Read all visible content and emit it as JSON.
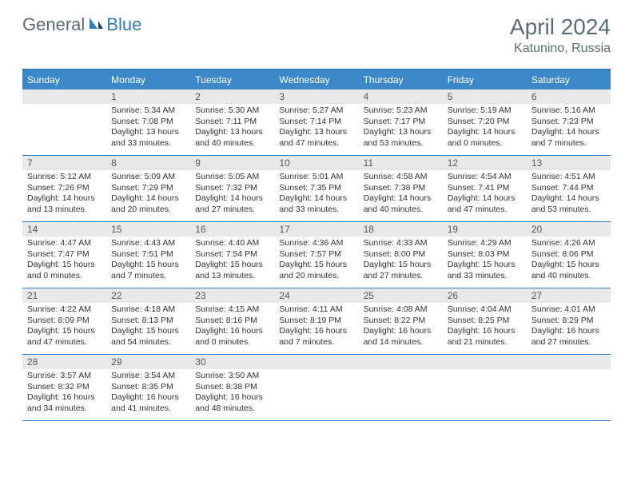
{
  "logo": {
    "part1": "General",
    "part2": "Blue"
  },
  "title": "April 2024",
  "location": "Katunino, Russia",
  "colors": {
    "header_bg": "#3b89c9",
    "border": "#2f7cc0",
    "gray_bar": "#e8e8e8",
    "text": "#333333",
    "muted": "#5a6a78"
  },
  "day_names": [
    "Sunday",
    "Monday",
    "Tuesday",
    "Wednesday",
    "Thursday",
    "Friday",
    "Saturday"
  ],
  "weeks": [
    [
      {
        "n": "",
        "l": []
      },
      {
        "n": "1",
        "l": [
          "Sunrise: 5:34 AM",
          "Sunset: 7:08 PM",
          "Daylight: 13 hours and 33 minutes."
        ]
      },
      {
        "n": "2",
        "l": [
          "Sunrise: 5:30 AM",
          "Sunset: 7:11 PM",
          "Daylight: 13 hours and 40 minutes."
        ]
      },
      {
        "n": "3",
        "l": [
          "Sunrise: 5:27 AM",
          "Sunset: 7:14 PM",
          "Daylight: 13 hours and 47 minutes."
        ]
      },
      {
        "n": "4",
        "l": [
          "Sunrise: 5:23 AM",
          "Sunset: 7:17 PM",
          "Daylight: 13 hours and 53 minutes."
        ]
      },
      {
        "n": "5",
        "l": [
          "Sunrise: 5:19 AM",
          "Sunset: 7:20 PM",
          "Daylight: 14 hours and 0 minutes."
        ]
      },
      {
        "n": "6",
        "l": [
          "Sunrise: 5:16 AM",
          "Sunset: 7:23 PM",
          "Daylight: 14 hours and 7 minutes."
        ]
      }
    ],
    [
      {
        "n": "7",
        "l": [
          "Sunrise: 5:12 AM",
          "Sunset: 7:26 PM",
          "Daylight: 14 hours and 13 minutes."
        ]
      },
      {
        "n": "8",
        "l": [
          "Sunrise: 5:09 AM",
          "Sunset: 7:29 PM",
          "Daylight: 14 hours and 20 minutes."
        ]
      },
      {
        "n": "9",
        "l": [
          "Sunrise: 5:05 AM",
          "Sunset: 7:32 PM",
          "Daylight: 14 hours and 27 minutes."
        ]
      },
      {
        "n": "10",
        "l": [
          "Sunrise: 5:01 AM",
          "Sunset: 7:35 PM",
          "Daylight: 14 hours and 33 minutes."
        ]
      },
      {
        "n": "11",
        "l": [
          "Sunrise: 4:58 AM",
          "Sunset: 7:38 PM",
          "Daylight: 14 hours and 40 minutes."
        ]
      },
      {
        "n": "12",
        "l": [
          "Sunrise: 4:54 AM",
          "Sunset: 7:41 PM",
          "Daylight: 14 hours and 47 minutes."
        ]
      },
      {
        "n": "13",
        "l": [
          "Sunrise: 4:51 AM",
          "Sunset: 7:44 PM",
          "Daylight: 14 hours and 53 minutes."
        ]
      }
    ],
    [
      {
        "n": "14",
        "l": [
          "Sunrise: 4:47 AM",
          "Sunset: 7:47 PM",
          "Daylight: 15 hours and 0 minutes."
        ]
      },
      {
        "n": "15",
        "l": [
          "Sunrise: 4:43 AM",
          "Sunset: 7:51 PM",
          "Daylight: 15 hours and 7 minutes."
        ]
      },
      {
        "n": "16",
        "l": [
          "Sunrise: 4:40 AM",
          "Sunset: 7:54 PM",
          "Daylight: 15 hours and 13 minutes."
        ]
      },
      {
        "n": "17",
        "l": [
          "Sunrise: 4:36 AM",
          "Sunset: 7:57 PM",
          "Daylight: 15 hours and 20 minutes."
        ]
      },
      {
        "n": "18",
        "l": [
          "Sunrise: 4:33 AM",
          "Sunset: 8:00 PM",
          "Daylight: 15 hours and 27 minutes."
        ]
      },
      {
        "n": "19",
        "l": [
          "Sunrise: 4:29 AM",
          "Sunset: 8:03 PM",
          "Daylight: 15 hours and 33 minutes."
        ]
      },
      {
        "n": "20",
        "l": [
          "Sunrise: 4:26 AM",
          "Sunset: 8:06 PM",
          "Daylight: 15 hours and 40 minutes."
        ]
      }
    ],
    [
      {
        "n": "21",
        "l": [
          "Sunrise: 4:22 AM",
          "Sunset: 8:09 PM",
          "Daylight: 15 hours and 47 minutes."
        ]
      },
      {
        "n": "22",
        "l": [
          "Sunrise: 4:18 AM",
          "Sunset: 8:13 PM",
          "Daylight: 15 hours and 54 minutes."
        ]
      },
      {
        "n": "23",
        "l": [
          "Sunrise: 4:15 AM",
          "Sunset: 8:16 PM",
          "Daylight: 16 hours and 0 minutes."
        ]
      },
      {
        "n": "24",
        "l": [
          "Sunrise: 4:11 AM",
          "Sunset: 8:19 PM",
          "Daylight: 16 hours and 7 minutes."
        ]
      },
      {
        "n": "25",
        "l": [
          "Sunrise: 4:08 AM",
          "Sunset: 8:22 PM",
          "Daylight: 16 hours and 14 minutes."
        ]
      },
      {
        "n": "26",
        "l": [
          "Sunrise: 4:04 AM",
          "Sunset: 8:25 PM",
          "Daylight: 16 hours and 21 minutes."
        ]
      },
      {
        "n": "27",
        "l": [
          "Sunrise: 4:01 AM",
          "Sunset: 8:29 PM",
          "Daylight: 16 hours and 27 minutes."
        ]
      }
    ],
    [
      {
        "n": "28",
        "l": [
          "Sunrise: 3:57 AM",
          "Sunset: 8:32 PM",
          "Daylight: 16 hours and 34 minutes."
        ]
      },
      {
        "n": "29",
        "l": [
          "Sunrise: 3:54 AM",
          "Sunset: 8:35 PM",
          "Daylight: 16 hours and 41 minutes."
        ]
      },
      {
        "n": "30",
        "l": [
          "Sunrise: 3:50 AM",
          "Sunset: 8:38 PM",
          "Daylight: 16 hours and 48 minutes."
        ]
      },
      {
        "n": "",
        "l": []
      },
      {
        "n": "",
        "l": []
      },
      {
        "n": "",
        "l": []
      },
      {
        "n": "",
        "l": []
      }
    ]
  ]
}
